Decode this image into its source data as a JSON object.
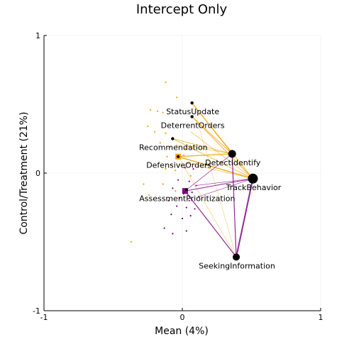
{
  "chart_data": {
    "type": "scatter",
    "title": "Intercept Only",
    "xlabel": "Mean (4%)",
    "ylabel": "Control/Treatment (21%)",
    "xlim": [
      -1,
      1
    ],
    "ylim": [
      -1,
      1
    ],
    "xticks": [
      "-1",
      "0",
      "1"
    ],
    "yticks": [
      "-1",
      "0",
      "1"
    ],
    "grid": true,
    "colors": {
      "orange": "#f0a30a",
      "purple": "#800080",
      "node": "#000000"
    },
    "nodes": [
      {
        "label": "StatusUpdate",
        "x": 0.07,
        "y": 0.51
      },
      {
        "label": "DeterrentOrders",
        "x": 0.07,
        "y": 0.41
      },
      {
        "label": "Recommendation",
        "x": -0.07,
        "y": 0.25
      },
      {
        "label": "DefensiveOrders",
        "x": -0.03,
        "y": 0.12
      },
      {
        "label": "DetectIdentify",
        "x": 0.36,
        "y": 0.14
      },
      {
        "label": "TrackBehavior",
        "x": 0.51,
        "y": -0.04
      },
      {
        "label": "AssessmentPrioritization",
        "x": 0.03,
        "y": -0.12
      },
      {
        "label": "SeekingInformation",
        "x": 0.39,
        "y": -0.61
      }
    ],
    "centroids": [
      {
        "color": "orange",
        "x": -0.03,
        "y": 0.12
      },
      {
        "color": "purple",
        "x": 0.02,
        "y": -0.13
      }
    ],
    "orange_points": [
      [
        -0.12,
        0.66
      ],
      [
        -0.04,
        0.55
      ],
      [
        -0.18,
        0.45
      ],
      [
        -0.23,
        0.46
      ],
      [
        -0.14,
        0.44
      ],
      [
        -0.25,
        0.34
      ],
      [
        -0.2,
        0.3
      ],
      [
        -0.12,
        0.29
      ],
      [
        -0.16,
        0.22
      ],
      [
        -0.09,
        0.19
      ],
      [
        -0.04,
        0.2
      ],
      [
        0.02,
        0.18
      ],
      [
        -0.11,
        0.12
      ],
      [
        0.01,
        0.13
      ],
      [
        -0.08,
        0.06
      ],
      [
        -0.02,
        0.06
      ],
      [
        0.04,
        0.07
      ],
      [
        -0.12,
        0.03
      ],
      [
        -0.05,
        0.02
      ],
      [
        0.06,
        -0.02
      ],
      [
        -0.14,
        -0.08
      ],
      [
        -0.05,
        -0.13
      ],
      [
        -0.28,
        -0.08
      ],
      [
        -0.24,
        -0.16
      ],
      [
        -0.37,
        -0.5
      ]
    ],
    "purple_points": [
      [
        0.02,
        0.04
      ],
      [
        0.08,
        0.03
      ],
      [
        -0.03,
        -0.05
      ],
      [
        0.05,
        -0.06
      ],
      [
        0.1,
        -0.09
      ],
      [
        -0.07,
        -0.11
      ],
      [
        0.01,
        -0.15
      ],
      [
        0.07,
        -0.14
      ],
      [
        -0.02,
        -0.18
      ],
      [
        0.05,
        -0.2
      ],
      [
        0.12,
        -0.17
      ],
      [
        -0.1,
        -0.2
      ],
      [
        -0.04,
        -0.24
      ],
      [
        0.03,
        -0.25
      ],
      [
        0.09,
        -0.26
      ],
      [
        -0.08,
        -0.3
      ],
      [
        0.0,
        -0.33
      ],
      [
        0.06,
        -0.31
      ],
      [
        -0.13,
        -0.4
      ],
      [
        -0.07,
        -0.44
      ],
      [
        0.03,
        -0.42
      ]
    ],
    "edges": [
      {
        "color": "orange",
        "from": [
          -0.03,
          0.12
        ],
        "to": [
          0.36,
          0.14
        ],
        "width": 1.4
      },
      {
        "color": "orange",
        "from": [
          -0.03,
          0.12
        ],
        "to": [
          0.51,
          -0.04
        ],
        "width": 1.6
      },
      {
        "color": "orange",
        "from": [
          0.07,
          0.51
        ],
        "to": [
          0.36,
          0.14
        ],
        "width": 1.0
      },
      {
        "color": "orange",
        "from": [
          0.07,
          0.51
        ],
        "to": [
          0.51,
          -0.04
        ],
        "width": 1.0
      },
      {
        "color": "orange",
        "from": [
          0.07,
          0.41
        ],
        "to": [
          0.36,
          0.14
        ],
        "width": 1.0
      },
      {
        "color": "orange",
        "from": [
          0.07,
          0.41
        ],
        "to": [
          0.51,
          -0.04
        ],
        "width": 1.0
      },
      {
        "color": "orange",
        "from": [
          -0.07,
          0.25
        ],
        "to": [
          0.36,
          0.14
        ],
        "width": 0.8
      },
      {
        "color": "orange",
        "from": [
          -0.07,
          0.25
        ],
        "to": [
          0.51,
          -0.04
        ],
        "width": 0.8
      },
      {
        "color": "orange",
        "from": [
          0.06,
          0.3
        ],
        "to": [
          0.51,
          -0.04
        ],
        "width": 0.6
      },
      {
        "color": "orange",
        "from": [
          0.02,
          0.2
        ],
        "to": [
          0.36,
          0.14
        ],
        "width": 0.6
      },
      {
        "color": "orange",
        "from": [
          0.04,
          0.07
        ],
        "to": [
          0.51,
          -0.04
        ],
        "width": 0.6
      },
      {
        "color": "orange",
        "from": [
          -0.03,
          0.12
        ],
        "to": [
          0.39,
          -0.61
        ],
        "width": 0.5
      },
      {
        "color": "orange",
        "from": [
          0.07,
          0.51
        ],
        "to": [
          0.39,
          -0.61
        ],
        "width": 0.4
      },
      {
        "color": "purple",
        "from": [
          0.02,
          -0.13
        ],
        "to": [
          0.36,
          0.14
        ],
        "width": 0.7
      },
      {
        "color": "purple",
        "from": [
          0.02,
          -0.13
        ],
        "to": [
          0.51,
          -0.04
        ],
        "width": 1.0
      },
      {
        "color": "purple",
        "from": [
          0.02,
          -0.13
        ],
        "to": [
          0.39,
          -0.61
        ],
        "width": 1.2
      },
      {
        "color": "purple",
        "from": [
          0.51,
          -0.04
        ],
        "to": [
          0.39,
          -0.61
        ],
        "width": 2.0
      },
      {
        "color": "purple",
        "from": [
          0.36,
          0.14
        ],
        "to": [
          0.39,
          -0.61
        ],
        "width": 1.2
      },
      {
        "color": "purple",
        "from": [
          0.1,
          -0.09
        ],
        "to": [
          0.51,
          -0.04
        ],
        "width": 0.6
      },
      {
        "color": "purple",
        "from": [
          0.12,
          -0.17
        ],
        "to": [
          0.51,
          -0.04
        ],
        "width": 0.6
      }
    ],
    "node_sizes": [
      {
        "label": "StatusUpdate",
        "r": 2.2
      },
      {
        "label": "DeterrentOrders",
        "r": 2.2
      },
      {
        "label": "Recommendation",
        "r": 2.2
      },
      {
        "label": "DefensiveOrders",
        "r": 2.0
      },
      {
        "label": "DetectIdentify",
        "r": 5.5
      },
      {
        "label": "TrackBehavior",
        "r": 7.0
      },
      {
        "label": "AssessmentPrioritization",
        "r": 2.0
      },
      {
        "label": "SeekingInformation",
        "r": 5.0
      }
    ]
  }
}
